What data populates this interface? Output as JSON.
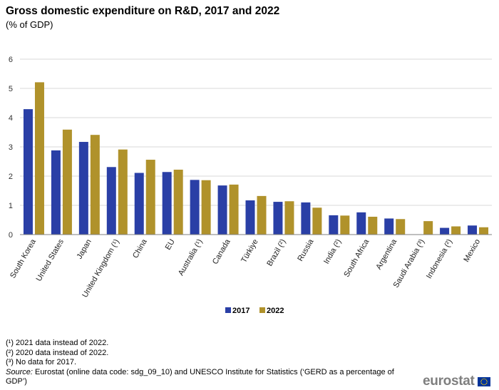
{
  "header": {
    "title": "Gross domestic expenditure on R&D, 2017 and 2022",
    "subtitle": "(% of GDP)"
  },
  "chart_data": {
    "type": "bar",
    "title": "Gross domestic expenditure on R&D, 2017 and 2022",
    "subtitle": "(% of GDP)",
    "xlabel": "",
    "ylabel": "",
    "ylim": [
      0,
      6
    ],
    "yticks": [
      0,
      1,
      2,
      3,
      4,
      5,
      6
    ],
    "grid": true,
    "legend_position": "bottom",
    "categories": [
      "South Korea",
      "United States",
      "Japan",
      "United Kingdom (¹)",
      "China",
      "EU",
      "Australia (¹)",
      "Canada",
      "Türkiye",
      "Brazil (²)",
      "Russia",
      "India (²)",
      "South Africa",
      "Argentina",
      "Saudi Arabia (³)",
      "Indonesia (²)",
      "Mexico"
    ],
    "series": [
      {
        "name": "2017",
        "color": "#2a3fa6",
        "values": [
          4.29,
          2.88,
          3.17,
          2.31,
          2.11,
          2.14,
          1.87,
          1.68,
          1.17,
          1.12,
          1.1,
          0.66,
          0.76,
          0.55,
          null,
          0.23,
          0.31
        ]
      },
      {
        "name": "2022",
        "color": "#b0922b",
        "values": [
          5.21,
          3.59,
          3.41,
          2.91,
          2.56,
          2.22,
          1.86,
          1.71,
          1.32,
          1.14,
          0.92,
          0.65,
          0.61,
          0.53,
          0.46,
          0.28,
          0.25
        ]
      }
    ]
  },
  "footnotes": [
    "(¹) 2021 data instead of 2022.",
    "(²) 2020 data instead of 2022.",
    "(³) No data for 2017."
  ],
  "source": {
    "label": "Source:",
    "text": " Eurostat (online data code: sdg_09_10) and UNESCO Institute  for Statistics (‘GERD as a percentage of GDP’)"
  },
  "logo": {
    "text": "eurostat",
    "flag_icon": "eu-flag-icon"
  }
}
